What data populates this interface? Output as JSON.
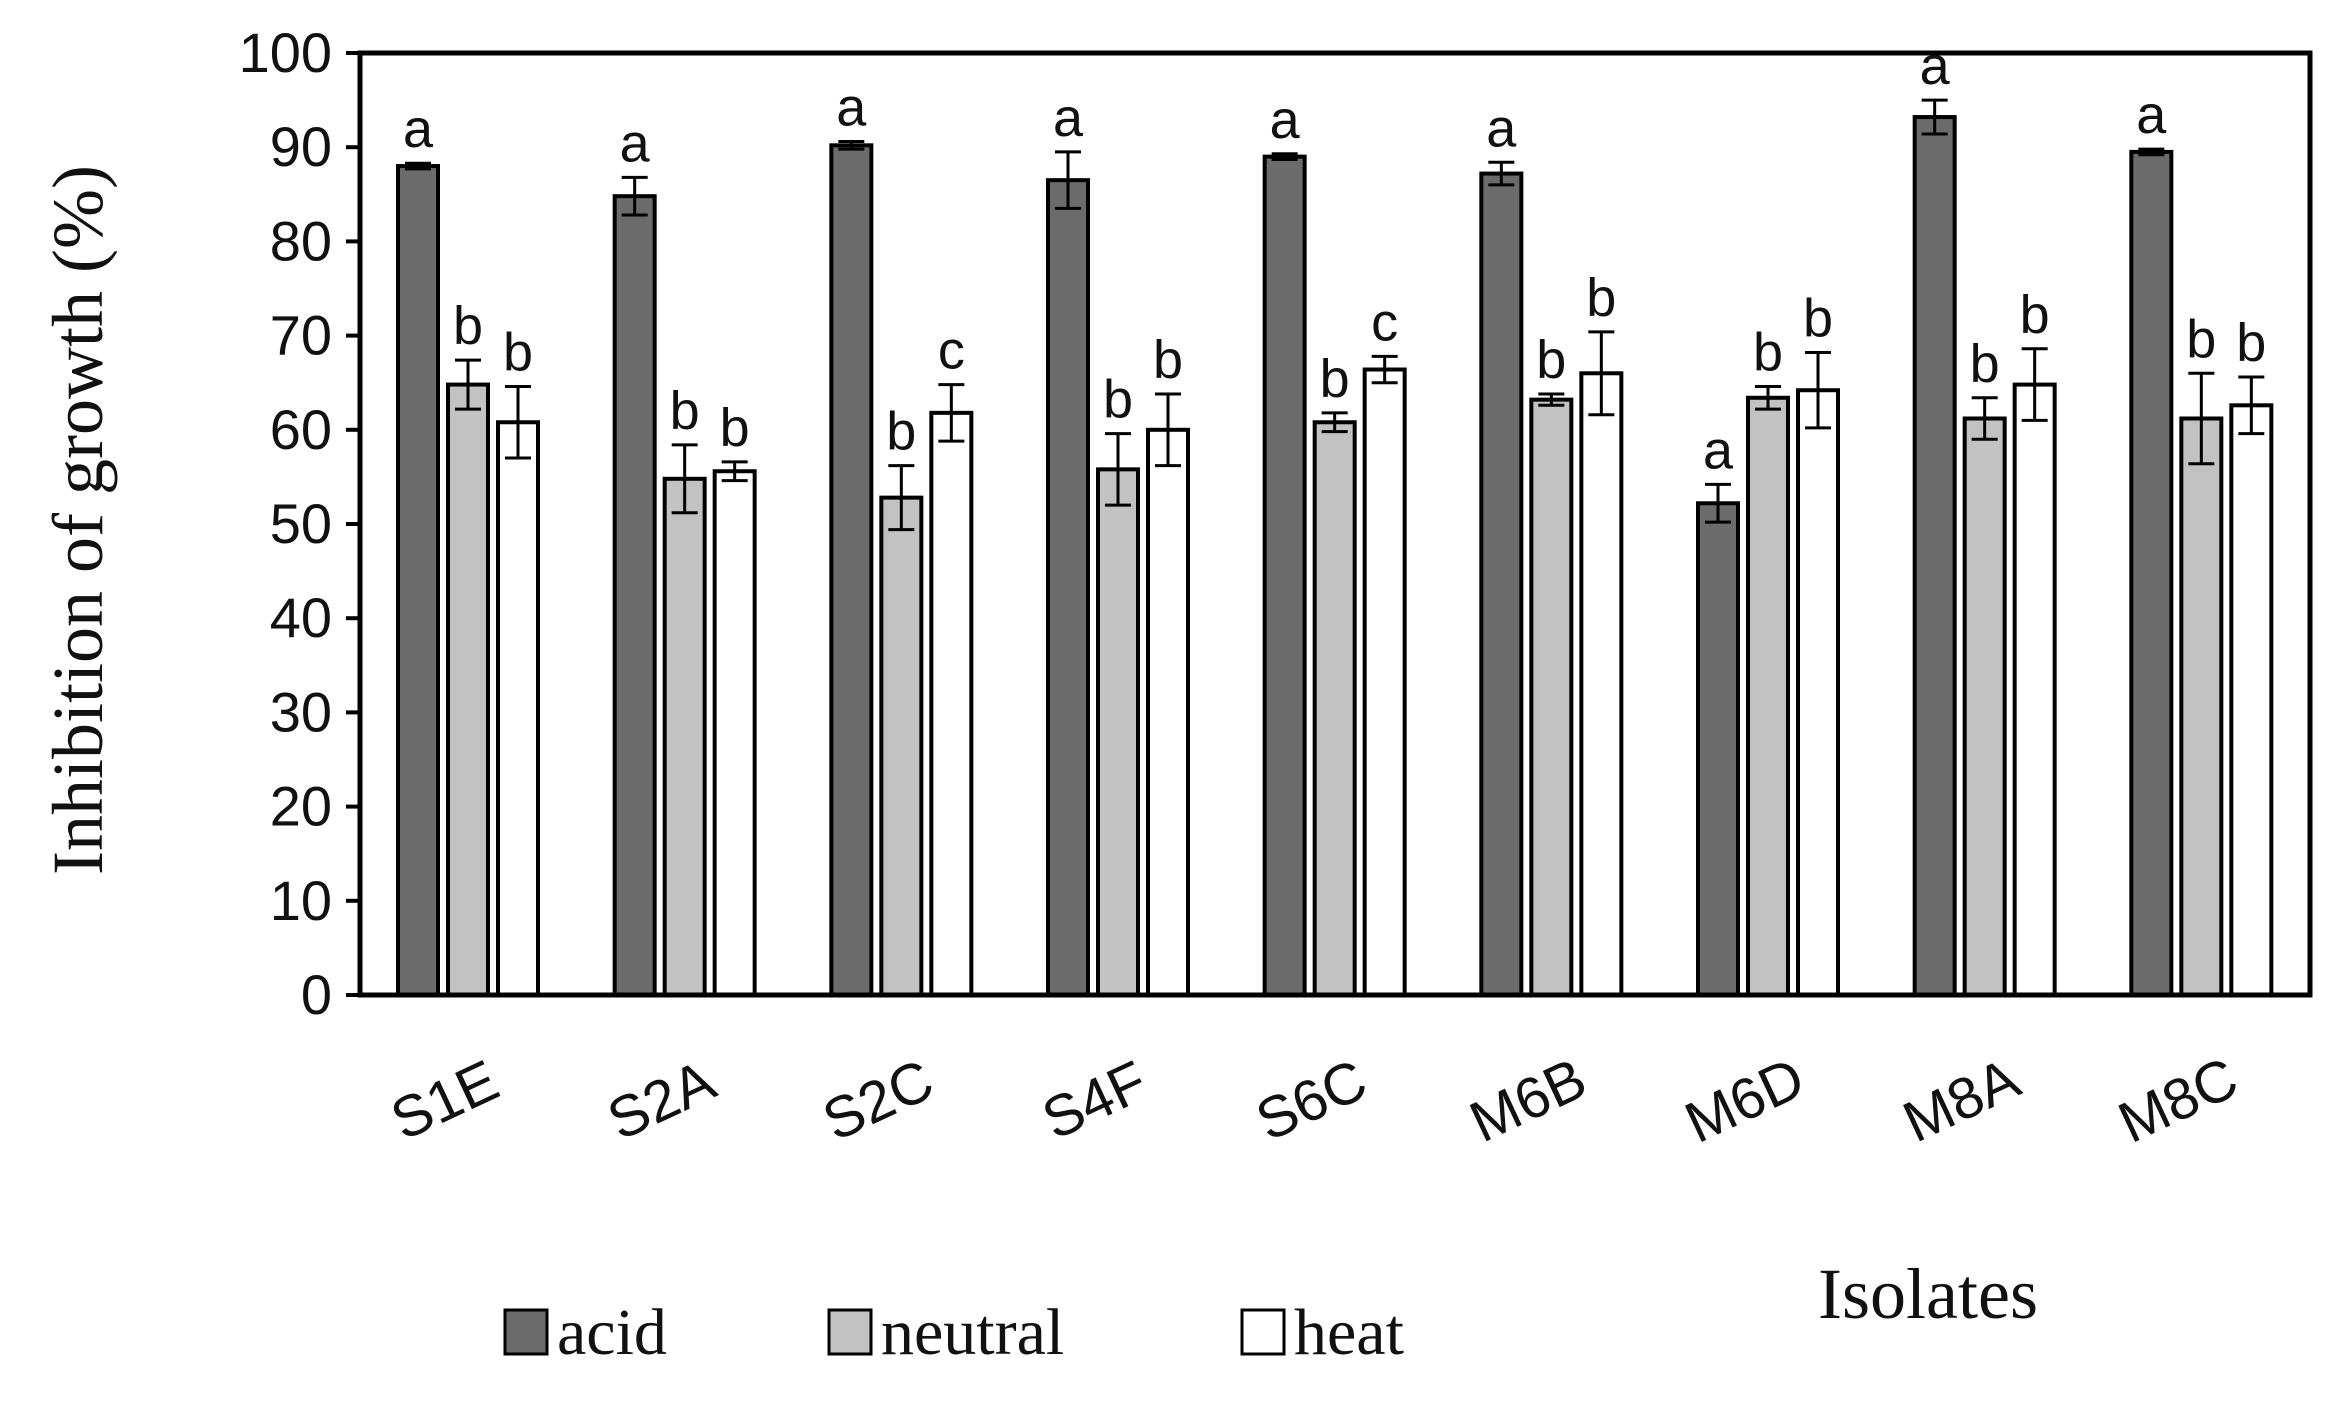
{
  "chart_data": {
    "type": "bar",
    "title": "",
    "xlabel": "Isolates",
    "ylabel": "Inhibition of growth (%)",
    "ylim": [
      0,
      100
    ],
    "yticks": [
      "0",
      "10",
      "20",
      "30",
      "40",
      "50",
      "60",
      "70",
      "80",
      "90",
      "100"
    ],
    "categories": [
      "S1E",
      "S2A",
      "S2C",
      "S4F",
      "S6C",
      "M6B",
      "M6D",
      "M8A",
      "M8C"
    ],
    "series": [
      {
        "name": "acid",
        "color": "#6b6b6b",
        "values": [
          88.0,
          84.8,
          90.2,
          86.5,
          89.0,
          87.2,
          52.2,
          93.2,
          89.5
        ],
        "errors": [
          0.3,
          2.0,
          0.4,
          3.0,
          0.3,
          1.2,
          2.0,
          1.8,
          0.3
        ],
        "letters": [
          "a",
          "a",
          "a",
          "a",
          "a",
          "a",
          "a",
          "a",
          "a"
        ]
      },
      {
        "name": "neutral",
        "color": "#c2c2c2",
        "values": [
          64.8,
          54.8,
          52.8,
          55.8,
          60.8,
          63.2,
          63.4,
          61.2,
          61.2
        ],
        "errors": [
          2.6,
          3.6,
          3.4,
          3.8,
          1.0,
          0.6,
          1.2,
          2.2,
          4.8
        ],
        "letters": [
          "b",
          "b",
          "b",
          "b",
          "b",
          "b",
          "b",
          "b",
          "b"
        ]
      },
      {
        "name": "heat",
        "color": "#ffffff",
        "values": [
          60.8,
          55.6,
          61.8,
          60.0,
          66.4,
          66.0,
          64.2,
          64.8,
          62.6
        ],
        "errors": [
          3.8,
          1.0,
          3.0,
          3.8,
          1.4,
          4.4,
          4.0,
          3.8,
          3.0
        ],
        "letters": [
          "b",
          "b",
          "c",
          "b",
          "c",
          "b",
          "b",
          "b",
          "b"
        ]
      }
    ],
    "legend": [
      "acid",
      "neutral",
      "heat"
    ],
    "legend_position": "bottom"
  }
}
